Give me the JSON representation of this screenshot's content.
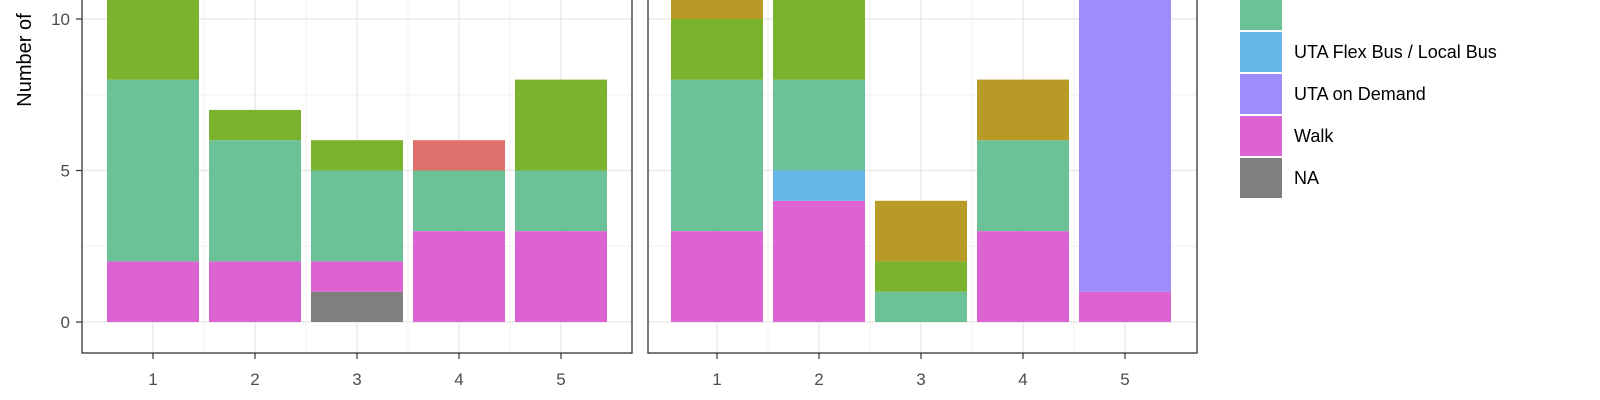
{
  "chart_data": {
    "type": "bar",
    "stacked": true,
    "ylabel": "Number of",
    "ylim": [
      0,
      10.9
    ],
    "y_ticks": [
      0,
      5,
      10
    ],
    "grid": true,
    "legend_position": "right",
    "legend": [
      {
        "name": "",
        "color": "#6cc196"
      },
      {
        "name": "UTA Flex Bus / Local Bus",
        "color": "#66b6e8"
      },
      {
        "name": "UTA on Demand",
        "color": "#9e8bfc"
      },
      {
        "name": "Walk",
        "color": "#dd63d3"
      },
      {
        "name": "NA",
        "color": "#7f7f7f"
      }
    ],
    "colors": {
      "walk": "#dd63d3",
      "na": "#7f7f7f",
      "green_teal": "#6cc196",
      "lime": "#7cb32e",
      "red": "#df706c",
      "blue": "#66b6e8",
      "purple": "#9e8bfc",
      "gold": "#b89a26"
    },
    "panels": [
      {
        "categories": [
          "1",
          "2",
          "3",
          "4",
          "5"
        ],
        "bars": [
          [
            {
              "color": "#dd63d3",
              "value": 2
            },
            {
              "color": "#6cc196",
              "value": 6
            },
            {
              "color": "#7cb32e",
              "value": 3
            }
          ],
          [
            {
              "color": "#dd63d3",
              "value": 2
            },
            {
              "color": "#6cc196",
              "value": 4
            },
            {
              "color": "#7cb32e",
              "value": 1
            }
          ],
          [
            {
              "color": "#7f7f7f",
              "value": 1
            },
            {
              "color": "#dd63d3",
              "value": 1
            },
            {
              "color": "#6cc196",
              "value": 3
            },
            {
              "color": "#7cb32e",
              "value": 1
            }
          ],
          [
            {
              "color": "#dd63d3",
              "value": 3
            },
            {
              "color": "#6cc196",
              "value": 2
            },
            {
              "color": "#df706c",
              "value": 1
            }
          ],
          [
            {
              "color": "#dd63d3",
              "value": 3
            },
            {
              "color": "#6cc196",
              "value": 2
            },
            {
              "color": "#7cb32e",
              "value": 3
            }
          ]
        ]
      },
      {
        "categories": [
          "1",
          "2",
          "3",
          "4",
          "5"
        ],
        "bars": [
          [
            {
              "color": "#dd63d3",
              "value": 3
            },
            {
              "color": "#6cc196",
              "value": 5
            },
            {
              "color": "#7cb32e",
              "value": 2
            },
            {
              "color": "#b89a26",
              "value": 1
            }
          ],
          [
            {
              "color": "#dd63d3",
              "value": 4
            },
            {
              "color": "#66b6e8",
              "value": 1
            },
            {
              "color": "#6cc196",
              "value": 3
            },
            {
              "color": "#7cb32e",
              "value": 3
            }
          ],
          [
            {
              "color": "#6cc196",
              "value": 1
            },
            {
              "color": "#7cb32e",
              "value": 1
            },
            {
              "color": "#b89a26",
              "value": 2
            }
          ],
          [
            {
              "color": "#dd63d3",
              "value": 3
            },
            {
              "color": "#6cc196",
              "value": 3
            },
            {
              "color": "#b89a26",
              "value": 2
            }
          ],
          [
            {
              "color": "#dd63d3",
              "value": 1
            },
            {
              "color": "#9e8bfc",
              "value": 10
            }
          ]
        ]
      }
    ]
  }
}
